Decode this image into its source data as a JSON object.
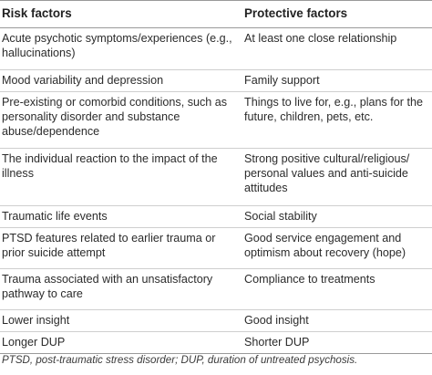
{
  "table": {
    "headers": [
      "Risk factors",
      "Protective factors"
    ],
    "rows": [
      [
        "Acute psychotic symptoms/experiences (e.g., hallucinations)",
        "At least one close relationship"
      ],
      [
        "Mood variability and depression",
        "Family support"
      ],
      [
        "Pre-existing or comorbid conditions, such as personality disorder and substance abuse/dependence",
        "Things to live for, e.g., plans for the future, children, pets, etc."
      ],
      [
        "The individual reaction to the impact of the illness",
        "Strong positive cultural/religious/ personal values and anti-suicide attitudes"
      ],
      [
        "Traumatic life events",
        "Social stability"
      ],
      [
        "PTSD features related to earlier trauma or prior suicide attempt",
        "Good service engagement and optimism about recovery (hope)"
      ],
      [
        "Trauma associated with an unsatisfactory pathway to care",
        "Compliance to treatments"
      ],
      [
        "Lower insight",
        "Good insight"
      ],
      [
        "Longer DUP",
        "Shorter DUP"
      ]
    ]
  },
  "footnote": "PTSD, post-traumatic stress disorder; DUP, duration of untreated psychosis."
}
